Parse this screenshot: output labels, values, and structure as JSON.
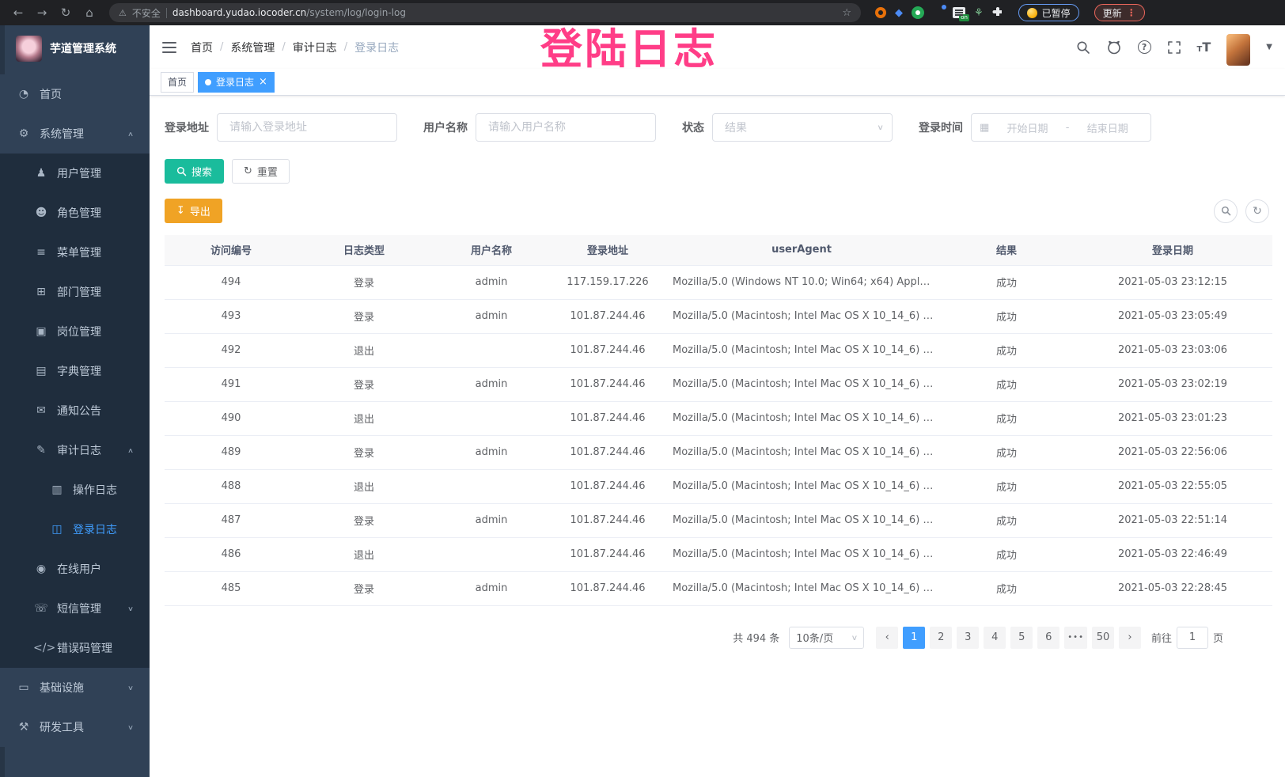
{
  "browser": {
    "security_label": "不安全",
    "url_domain": "dashboard.yudao.iocoder.cn",
    "url_path": "/system/log/login-log",
    "extension_on_badge": "on",
    "paused_badge": "已暂停",
    "update_badge": "更新"
  },
  "annotation": {
    "text": "登陆日志"
  },
  "colors": {
    "accent_blue": "#409eff",
    "sidebar_bg": "#304156",
    "submenu_bg": "#1f2d3d",
    "search_button": "#1abc9c",
    "export_button": "#f0a325",
    "annotation_pink": "#ff3d87"
  },
  "sidebar": {
    "title": "芋道管理系统",
    "items": [
      {
        "label": "首页",
        "icon": "dashboard-icon",
        "level": 0
      },
      {
        "label": "系统管理",
        "icon": "gear-icon",
        "level": 0,
        "arrow": "up"
      },
      {
        "label": "用户管理",
        "icon": "user-icon",
        "level": 1
      },
      {
        "label": "角色管理",
        "icon": "roles-icon",
        "level": 1
      },
      {
        "label": "菜单管理",
        "icon": "menu-tree-icon",
        "level": 1
      },
      {
        "label": "部门管理",
        "icon": "org-tree-icon",
        "level": 1
      },
      {
        "label": "岗位管理",
        "icon": "post-icon",
        "level": 1
      },
      {
        "label": "字典管理",
        "icon": "dict-icon",
        "level": 1
      },
      {
        "label": "通知公告",
        "icon": "notice-icon",
        "level": 1
      },
      {
        "label": "审计日志",
        "icon": "audit-log-icon",
        "level": 1,
        "arrow": "up"
      },
      {
        "label": "操作日志",
        "icon": "operation-log-icon",
        "level": 2
      },
      {
        "label": "登录日志",
        "icon": "login-log-icon",
        "level": 2,
        "active": true
      },
      {
        "label": "在线用户",
        "icon": "online-users-icon",
        "level": 1
      },
      {
        "label": "短信管理",
        "icon": "sms-icon",
        "level": 1,
        "arrow": "down"
      },
      {
        "label": "错误码管理",
        "icon": "error-code-icon",
        "level": 1
      },
      {
        "label": "基础设施",
        "icon": "infra-icon",
        "level": 0,
        "arrow": "down"
      },
      {
        "label": "研发工具",
        "icon": "devtools-icon",
        "level": 0,
        "arrow": "down"
      }
    ]
  },
  "breadcrumb": [
    "首页",
    "系统管理",
    "审计日志",
    "登录日志"
  ],
  "tags": [
    {
      "label": "首页",
      "active": false,
      "closable": false
    },
    {
      "label": "登录日志",
      "active": true,
      "closable": true
    }
  ],
  "filters": {
    "login_address": {
      "label": "登录地址",
      "placeholder": "请输入登录地址"
    },
    "username": {
      "label": "用户名称",
      "placeholder": "请输入用户名称"
    },
    "status": {
      "label": "状态",
      "placeholder": "结果"
    },
    "login_time": {
      "label": "登录时间",
      "start_placeholder": "开始日期",
      "separator": "-",
      "end_placeholder": "结束日期"
    }
  },
  "actions": {
    "search": "搜索",
    "reset": "重置",
    "export": "导出"
  },
  "table": {
    "columns": [
      "访问编号",
      "日志类型",
      "用户名称",
      "登录地址",
      "userAgent",
      "结果",
      "登录日期"
    ],
    "rows": [
      [
        "494",
        "登录",
        "admin",
        "117.159.17.226",
        "Mozilla/5.0 (Windows NT 10.0; Win64; x64) AppleWebKit...",
        "成功",
        "2021-05-03 23:12:15"
      ],
      [
        "493",
        "登录",
        "admin",
        "101.87.244.46",
        "Mozilla/5.0 (Macintosh; Intel Mac OS X 10_14_6) AppleWe...",
        "成功",
        "2021-05-03 23:05:49"
      ],
      [
        "492",
        "退出",
        "",
        "101.87.244.46",
        "Mozilla/5.0 (Macintosh; Intel Mac OS X 10_14_6) AppleWe...",
        "成功",
        "2021-05-03 23:03:06"
      ],
      [
        "491",
        "登录",
        "admin",
        "101.87.244.46",
        "Mozilla/5.0 (Macintosh; Intel Mac OS X 10_14_6) AppleWe...",
        "成功",
        "2021-05-03 23:02:19"
      ],
      [
        "490",
        "退出",
        "",
        "101.87.244.46",
        "Mozilla/5.0 (Macintosh; Intel Mac OS X 10_14_6) AppleWe...",
        "成功",
        "2021-05-03 23:01:23"
      ],
      [
        "489",
        "登录",
        "admin",
        "101.87.244.46",
        "Mozilla/5.0 (Macintosh; Intel Mac OS X 10_14_6) AppleWe...",
        "成功",
        "2021-05-03 22:56:06"
      ],
      [
        "488",
        "退出",
        "",
        "101.87.244.46",
        "Mozilla/5.0 (Macintosh; Intel Mac OS X 10_14_6) AppleWe...",
        "成功",
        "2021-05-03 22:55:05"
      ],
      [
        "487",
        "登录",
        "admin",
        "101.87.244.46",
        "Mozilla/5.0 (Macintosh; Intel Mac OS X 10_14_6) AppleWe...",
        "成功",
        "2021-05-03 22:51:14"
      ],
      [
        "486",
        "退出",
        "",
        "101.87.244.46",
        "Mozilla/5.0 (Macintosh; Intel Mac OS X 10_14_6) AppleWe...",
        "成功",
        "2021-05-03 22:46:49"
      ],
      [
        "485",
        "登录",
        "admin",
        "101.87.244.46",
        "Mozilla/5.0 (Macintosh; Intel Mac OS X 10_14_6) AppleWe...",
        "成功",
        "2021-05-03 22:28:45"
      ]
    ]
  },
  "pagination": {
    "total_text": "共 494 条",
    "page_size": "10条/页",
    "pages": [
      "1",
      "2",
      "3",
      "4",
      "5",
      "6",
      "...",
      "50"
    ],
    "active_page": "1",
    "prev": "‹",
    "next": "›",
    "goto_label": "前往",
    "goto_value": "1",
    "goto_suffix": "页"
  }
}
